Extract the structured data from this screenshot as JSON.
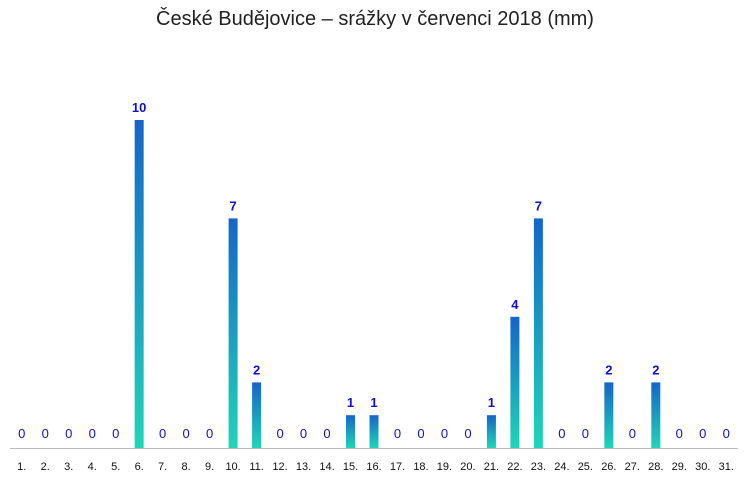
{
  "chart_data": {
    "type": "bar",
    "title": "České Budějovice – srážky v červenci 2018 (mm)",
    "xlabel": "",
    "ylabel": "",
    "categories": [
      "1.",
      "2.",
      "3.",
      "4.",
      "5.",
      "6.",
      "7.",
      "8.",
      "9.",
      "10.",
      "11.",
      "12.",
      "13.",
      "14.",
      "15.",
      "16.",
      "17.",
      "18.",
      "19.",
      "20.",
      "21.",
      "22.",
      "23.",
      "24.",
      "25.",
      "26.",
      "27.",
      "28.",
      "29.",
      "30.",
      "31."
    ],
    "values": [
      0,
      0,
      0,
      0,
      0,
      10,
      0,
      0,
      0,
      7,
      2,
      0,
      0,
      0,
      1,
      1,
      0,
      0,
      0,
      0,
      1,
      4,
      7,
      0,
      0,
      2,
      0,
      2,
      0,
      0,
      0
    ],
    "ylim": [
      0,
      10
    ],
    "grid": false,
    "legend": "none",
    "colors": {
      "bar_top": "#1565c8",
      "bar_bottom": "#1fd6b8",
      "label": "#1010cc",
      "axis": "#bbbbbb"
    }
  }
}
